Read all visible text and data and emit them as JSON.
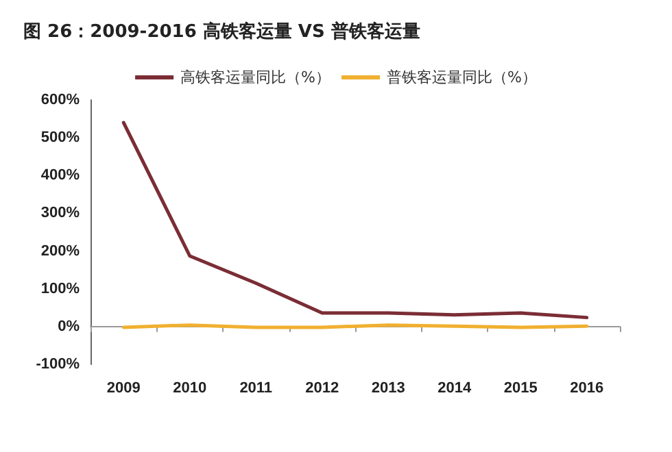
{
  "chart_data": {
    "type": "line",
    "title": "图 26：2009-2016 高铁客运量 VS 普铁客运量",
    "categories": [
      "2009",
      "2010",
      "2011",
      "2012",
      "2013",
      "2014",
      "2015",
      "2016"
    ],
    "series": [
      {
        "name": "高铁客运量同比（%）",
        "color": "#7b2d35",
        "values": [
          540,
          187,
          115,
          36,
          36,
          31,
          36,
          24
        ]
      },
      {
        "name": "普铁客运量同比（%）",
        "color": "#f0b030",
        "values": [
          -2,
          4,
          -2,
          -2,
          4,
          1,
          -2,
          1
        ]
      }
    ],
    "ylim": [
      -100,
      600
    ],
    "yticks": [
      {
        "value": -100,
        "label": "-100%"
      },
      {
        "value": 0,
        "label": "0%"
      },
      {
        "value": 100,
        "label": "100%"
      },
      {
        "value": 200,
        "label": "200%"
      },
      {
        "value": 300,
        "label": "300%"
      },
      {
        "value": 400,
        "label": "400%"
      },
      {
        "value": 500,
        "label": "500%"
      },
      {
        "value": 600,
        "label": "600%"
      }
    ],
    "legend": "top",
    "marker": "none",
    "line_style": "solid"
  }
}
